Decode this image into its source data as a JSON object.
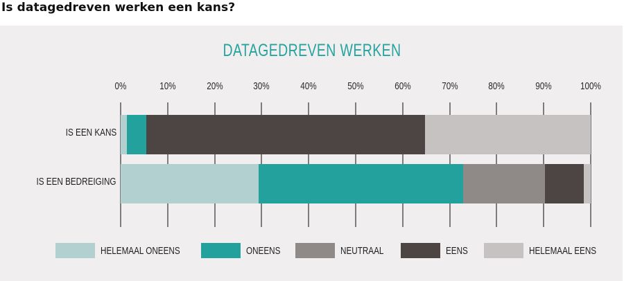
{
  "page": {
    "heading": "Is datagedreven werken een kans?"
  },
  "colors": {
    "helemaal_oneens": "#b2d0d0",
    "oneens": "#22a19d",
    "neutraal": "#8f8987",
    "eens": "#4c4543",
    "helemaal_eens": "#c6c2c2",
    "title": "#25a39e",
    "panel_bg": "#f0eeef"
  },
  "chart_data": {
    "type": "bar",
    "orientation": "horizontal",
    "stacked": true,
    "title": "DATAGEDREVEN WERKEN",
    "xlabel": "",
    "ylabel": "",
    "xlim": [
      0,
      100
    ],
    "x_ticks": [
      "0%",
      "10%",
      "20%",
      "30%",
      "40%",
      "50%",
      "60%",
      "70%",
      "80%",
      "90%",
      "100%"
    ],
    "grid": true,
    "legend_position": "bottom",
    "categories": [
      "IS EEN KANS",
      "IS EEN BEDREIGING"
    ],
    "series": [
      {
        "name": "HELEMAAL ONEENS",
        "color": "#b2d0d0",
        "values": [
          1.3,
          29.3
        ]
      },
      {
        "name": "ONEENS",
        "color": "#22a19d",
        "values": [
          4.2,
          43.6
        ]
      },
      {
        "name": "NEUTRAAL",
        "color": "#8f8987",
        "values": [
          0.0,
          17.4
        ]
      },
      {
        "name": "EENS",
        "color": "#4c4543",
        "values": [
          59.2,
          8.2
        ]
      },
      {
        "name": "HELEMAAL EENS",
        "color": "#c6c2c2",
        "values": [
          35.3,
          1.5
        ]
      }
    ]
  }
}
